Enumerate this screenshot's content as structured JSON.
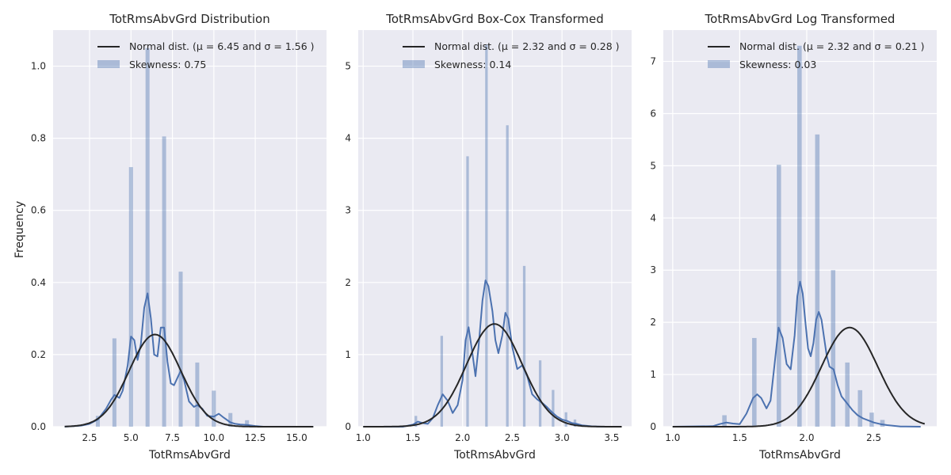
{
  "figure": {
    "ylabel": "Frequency"
  },
  "colors": {
    "panel_bg": "#EAEAF2",
    "grid": "#FFFFFF",
    "hist": "#4C72B0",
    "kde": "#4C72B0",
    "normal": "#262626"
  },
  "chart_data": [
    {
      "type": "bar",
      "title": "TotRmsAbvGrd Distribution",
      "xlabel": "TotRmsAbvGrd",
      "ylabel": "Frequency",
      "xlim": [
        0.3,
        16.8
      ],
      "ylim": [
        0,
        1.1
      ],
      "xticks": [
        2.5,
        5.0,
        7.5,
        10.0,
        12.5,
        15.0
      ],
      "xtick_labels": [
        "2.5",
        "5.0",
        "7.5",
        "10.0",
        "12.5",
        "15.0"
      ],
      "yticks": [
        0,
        0.2,
        0.4,
        0.6,
        0.8,
        1.0
      ],
      "ytick_labels": [
        "0.0",
        "0.2",
        "0.4",
        "0.6",
        "0.8",
        "1.0"
      ],
      "legend": {
        "placement": "top-right",
        "normal_label": "Normal dist. (μ =  6.45 and σ =  1.56 )",
        "hist_label": "Skewness: 0.75"
      },
      "bin_width": 0.24,
      "histogram": {
        "x": [
          3,
          4,
          5,
          6,
          7,
          8,
          9,
          10,
          11,
          12
        ],
        "values": [
          0.03,
          0.245,
          0.72,
          1.05,
          0.805,
          0.43,
          0.178,
          0.1,
          0.038,
          0.018
        ]
      },
      "kde": {
        "x": [
          1.0,
          2.0,
          2.5,
          3.0,
          3.5,
          3.8,
          4.0,
          4.3,
          4.5,
          4.8,
          5.0,
          5.2,
          5.4,
          5.6,
          5.8,
          6.0,
          6.2,
          6.4,
          6.6,
          6.8,
          7.0,
          7.2,
          7.4,
          7.6,
          7.8,
          8.0,
          8.2,
          8.5,
          8.8,
          9.0,
          9.3,
          9.6,
          10.0,
          10.3,
          10.6,
          11.0,
          11.3,
          11.6,
          12.0,
          12.5,
          13.0,
          14.0,
          15.0,
          16.0
        ],
        "y": [
          0.0,
          0.003,
          0.008,
          0.02,
          0.05,
          0.075,
          0.088,
          0.08,
          0.1,
          0.17,
          0.25,
          0.24,
          0.185,
          0.23,
          0.33,
          0.37,
          0.3,
          0.2,
          0.195,
          0.275,
          0.275,
          0.18,
          0.12,
          0.115,
          0.135,
          0.155,
          0.13,
          0.07,
          0.055,
          0.06,
          0.05,
          0.03,
          0.028,
          0.036,
          0.025,
          0.012,
          0.008,
          0.006,
          0.005,
          0.002,
          0.0,
          0.0,
          0.0,
          0.0
        ]
      },
      "normal": {
        "mu": 6.45,
        "sigma": 1.56,
        "x_range": [
          1.0,
          16.0
        ]
      }
    },
    {
      "type": "bar",
      "title": "TotRmsAbvGrd Box-Cox Transformed",
      "xlabel": "TotRmsAbvGrd",
      "ylabel": "",
      "xlim": [
        0.95,
        3.7
      ],
      "ylim": [
        0,
        5.5
      ],
      "xticks": [
        1.0,
        1.5,
        2.0,
        2.5,
        3.0,
        3.5
      ],
      "xtick_labels": [
        "1.0",
        "1.5",
        "2.0",
        "2.5",
        "3.0",
        "3.5"
      ],
      "yticks": [
        0,
        1,
        2,
        3,
        4,
        5
      ],
      "ytick_labels": [
        "0",
        "1",
        "2",
        "3",
        "4",
        "5"
      ],
      "legend": {
        "placement": "top-right",
        "normal_label": "Normal dist. (μ =  2.32 and σ =  0.28 )",
        "hist_label": "Skewness: 0.14"
      },
      "bin_width": 0.026,
      "histogram": {
        "x": [
          1.53,
          1.79,
          2.05,
          2.24,
          2.45,
          2.62,
          2.78,
          2.91,
          3.04,
          3.13
        ],
        "values": [
          0.15,
          1.26,
          3.75,
          5.3,
          4.18,
          2.23,
          0.92,
          0.51,
          0.2,
          0.1
        ]
      },
      "kde": {
        "x": [
          1.0,
          1.4,
          1.5,
          1.55,
          1.6,
          1.65,
          1.7,
          1.75,
          1.8,
          1.85,
          1.9,
          1.95,
          2.0,
          2.03,
          2.06,
          2.1,
          2.13,
          2.16,
          2.2,
          2.23,
          2.26,
          2.3,
          2.33,
          2.36,
          2.4,
          2.43,
          2.46,
          2.5,
          2.55,
          2.6,
          2.65,
          2.7,
          2.75,
          2.8,
          2.85,
          2.9,
          2.95,
          3.0,
          3.05,
          3.1,
          3.15,
          3.2,
          3.3,
          3.4,
          3.6
        ],
        "y": [
          0.0,
          0.0,
          0.03,
          0.07,
          0.05,
          0.04,
          0.12,
          0.3,
          0.45,
          0.36,
          0.19,
          0.3,
          0.65,
          1.2,
          1.38,
          1.0,
          0.7,
          1.1,
          1.75,
          2.03,
          1.95,
          1.6,
          1.2,
          1.02,
          1.27,
          1.58,
          1.5,
          1.1,
          0.8,
          0.85,
          0.7,
          0.45,
          0.38,
          0.33,
          0.27,
          0.2,
          0.14,
          0.1,
          0.08,
          0.05,
          0.04,
          0.02,
          0.005,
          0.0,
          0.0
        ]
      },
      "normal": {
        "mu": 2.32,
        "sigma": 0.28,
        "x_range": [
          1.0,
          3.6
        ]
      }
    },
    {
      "type": "bar",
      "title": "TotRmsAbvGrd Log Transformed",
      "xlabel": "TotRmsAbvGrd",
      "ylabel": "",
      "xlim": [
        0.93,
        2.97
      ],
      "ylim": [
        0,
        7.6
      ],
      "xticks": [
        1.0,
        1.5,
        2.0,
        2.5
      ],
      "xtick_labels": [
        "1.0",
        "1.5",
        "2.0",
        "2.5"
      ],
      "yticks": [
        0,
        1,
        2,
        3,
        4,
        5,
        6,
        7
      ],
      "ytick_labels": [
        "0",
        "1",
        "2",
        "3",
        "4",
        "5",
        "6",
        "7"
      ],
      "legend": {
        "placement": "top-right",
        "normal_label": "Normal dist. (μ =  2.32 and σ =  0.21 )",
        "hist_label": "Skewness: 0.03"
      },
      "bin_width": 0.033,
      "histogram": {
        "x": [
          1.386,
          1.609,
          1.792,
          1.946,
          2.079,
          2.197,
          2.303,
          2.398,
          2.485,
          2.565
        ],
        "values": [
          0.22,
          1.7,
          5.02,
          7.3,
          5.6,
          3.0,
          1.23,
          0.7,
          0.27,
          0.13
        ]
      },
      "kde": {
        "x": [
          1.0,
          1.3,
          1.35,
          1.4,
          1.45,
          1.5,
          1.55,
          1.6,
          1.63,
          1.66,
          1.7,
          1.73,
          1.76,
          1.79,
          1.82,
          1.85,
          1.88,
          1.91,
          1.93,
          1.95,
          1.97,
          1.99,
          2.01,
          2.03,
          2.05,
          2.07,
          2.09,
          2.11,
          2.13,
          2.15,
          2.17,
          2.2,
          2.23,
          2.26,
          2.3,
          2.34,
          2.38,
          2.42,
          2.46,
          2.5,
          2.55,
          2.6,
          2.7,
          2.85
        ],
        "y": [
          0.0,
          0.01,
          0.05,
          0.08,
          0.06,
          0.05,
          0.25,
          0.55,
          0.62,
          0.55,
          0.35,
          0.5,
          1.2,
          1.9,
          1.7,
          1.2,
          1.1,
          1.75,
          2.5,
          2.78,
          2.55,
          2.0,
          1.5,
          1.35,
          1.6,
          2.05,
          2.2,
          2.05,
          1.7,
          1.35,
          1.15,
          1.1,
          0.8,
          0.58,
          0.45,
          0.32,
          0.22,
          0.16,
          0.12,
          0.08,
          0.05,
          0.03,
          0.005,
          0.0
        ]
      },
      "normal": {
        "mu": 2.32,
        "sigma": 0.21,
        "x_range": [
          1.0,
          2.88
        ]
      }
    }
  ]
}
